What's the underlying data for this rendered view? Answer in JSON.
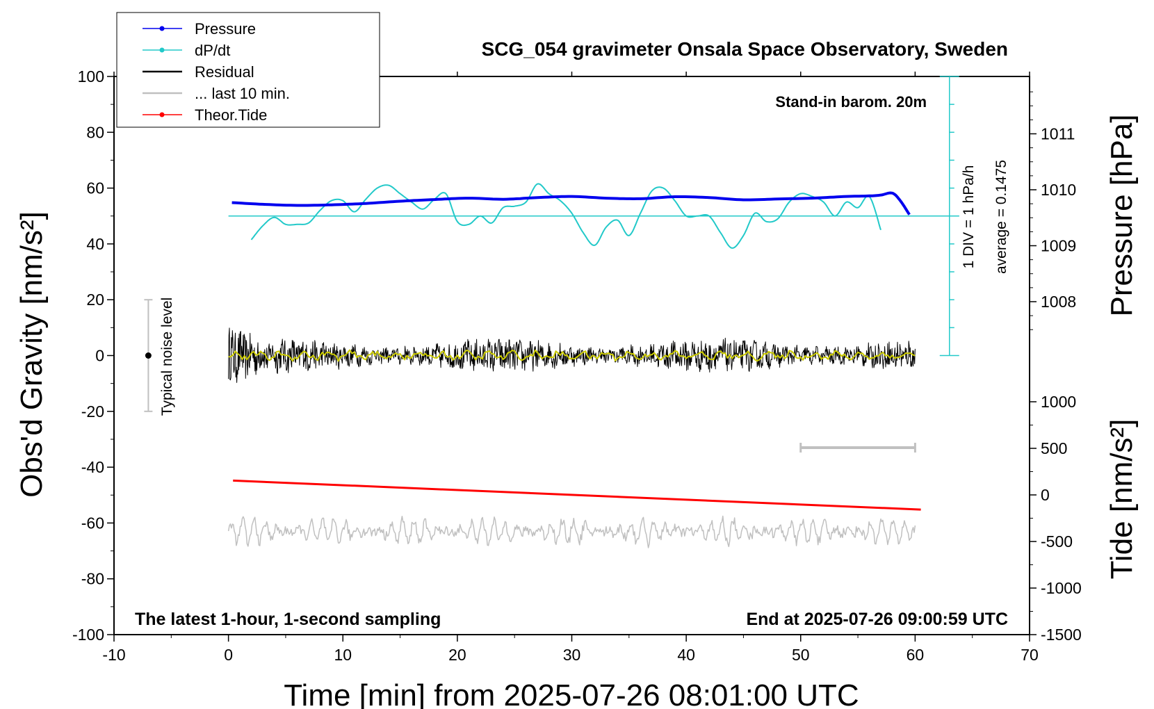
{
  "chart_data": {
    "type": "line",
    "title": "SCG_054 gravimeter Onsala Space Observatory, Sweden",
    "xlabel": "Time [min] from 2025-07-26 08:01:00 UTC",
    "ylabel_left": "Obs'd Gravity [nm/s²]",
    "ylabel_right_top": "Pressure [hPa]",
    "ylabel_right_bottom": "Tide [nm/s²]",
    "xlim": [
      -10,
      70
    ],
    "ylim": [
      -100,
      100
    ],
    "pressure_ylim_hint": [
      1008,
      1011
    ],
    "tide_ylim": [
      -1500,
      1000
    ],
    "xticks": [
      -10,
      0,
      10,
      20,
      30,
      40,
      50,
      60,
      70
    ],
    "yticks_left": [
      -100,
      -80,
      -60,
      -40,
      -20,
      0,
      20,
      40,
      60,
      80,
      100
    ],
    "yticks_pressure": [
      1008,
      1009,
      1010,
      1011
    ],
    "yticks_tide": [
      -1500,
      -1000,
      -500,
      0,
      500,
      1000
    ],
    "annotations": {
      "barometer": "Stand-in barom. 20m",
      "footer_left": "The latest 1-hour, 1-second sampling",
      "footer_right": "End at 2025-07-26 09:00:59 UTC",
      "noise": "Typical noise level",
      "div": "1 DIV = 1 hPa/h",
      "average": "average = 0.1475"
    },
    "legend": {
      "position": "top-left",
      "entries": [
        "Pressure",
        "dP/dt",
        "Residual",
        "... last 10 min.",
        "Theor.Tide"
      ]
    },
    "series": [
      {
        "name": "Pressure",
        "color": "#0000ee",
        "x": [
          0.3,
          3,
          6,
          9,
          12,
          15,
          18,
          21,
          24,
          27,
          30,
          33,
          36,
          39,
          42,
          45,
          48,
          51,
          54,
          56,
          57,
          58,
          58.7,
          59.5
        ],
        "y": [
          54.8,
          54.2,
          53.8,
          54.0,
          54.5,
          55.3,
          55.9,
          56.4,
          56.0,
          56.6,
          57.0,
          56.4,
          56.2,
          56.9,
          56.6,
          55.8,
          56.1,
          56.4,
          57.0,
          57.2,
          57.5,
          58.2,
          55.5,
          50.5
        ]
      },
      {
        "name": "dP/dt",
        "color": "#22c9c9",
        "x": [
          2,
          3,
          4,
          5,
          6,
          7,
          8,
          9,
          10,
          11,
          12,
          13,
          14,
          15,
          16,
          17,
          18,
          19,
          20,
          21,
          22,
          23,
          24,
          25,
          26,
          27,
          28,
          29,
          30,
          31,
          32,
          33,
          34,
          35,
          36,
          37,
          38,
          39,
          40,
          41,
          42,
          43,
          44,
          45,
          46,
          47,
          48,
          49,
          50,
          51,
          52,
          53,
          54,
          55,
          56,
          57
        ],
        "y": [
          41.5,
          46.5,
          49.5,
          47,
          47,
          47.5,
          52,
          55.5,
          55.5,
          51.5,
          56,
          60,
          61,
          58,
          55,
          52.5,
          56,
          58,
          48,
          47,
          50,
          47.5,
          53,
          53.5,
          55,
          61.5,
          58,
          55.5,
          51,
          44,
          39.5,
          46,
          48.5,
          43,
          51,
          59,
          60,
          55.5,
          50,
          50,
          50,
          44,
          38.5,
          43,
          51,
          48,
          49,
          55,
          58,
          57,
          55,
          50,
          55,
          53,
          57,
          45
        ]
      },
      {
        "name": "Residual",
        "color": "#000000",
        "x_range": [
          0,
          60
        ],
        "amplitude_nm_s2": [
          8,
          3
        ]
      },
      {
        "name": "... last 10 min.",
        "color": "#c0c0c0",
        "x_range": [
          0,
          60
        ],
        "offset_nm_s2": -63,
        "amplitude_nm_s2": 4,
        "bar_x": [
          50,
          60
        ],
        "bar_y": -33
      },
      {
        "name": "Theor.Tide",
        "color": "#ff0000",
        "x": [
          0.4,
          60.5
        ],
        "y": [
          -44.8,
          -55.2
        ]
      }
    ],
    "noise_bar": {
      "x": -7,
      "y_center": 0,
      "half_range": 20
    }
  }
}
